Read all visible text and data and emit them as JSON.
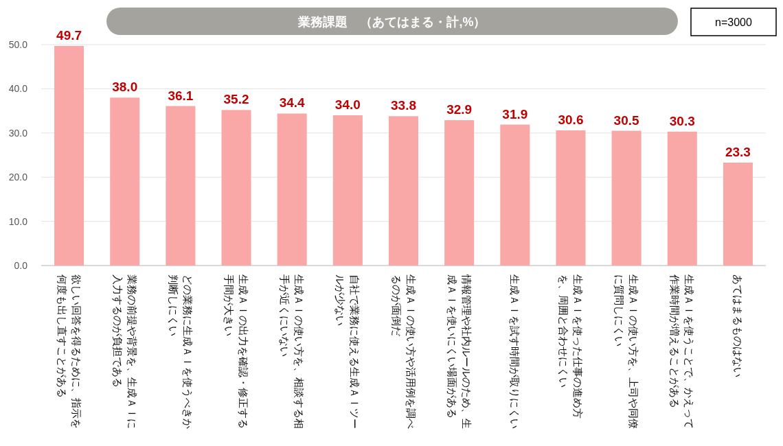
{
  "chart_data": {
    "type": "bar",
    "title": "業務課題　（あてはまる・計,%）",
    "annotations": [
      "n=3000"
    ],
    "categories": [
      "欲しい回答を得るために、指示を何度も出し直すことがある",
      "業務の前提や背景を、生成ＡＩに入力するのが負担である",
      "どの業務に生成ＡＩを使うべきか判断しにくい",
      "生成ＡＩの出力を確認・修正する手間が大きい",
      "生成ＡＩの使い方を、相談する相手が近くにいない",
      "自社で業務に使える生成ＡＩツールが少ない",
      "生成ＡＩの使い方や活用例を調べるのが面倒だ",
      "情報管理や社内ルールのため、生成ＡＩを使いにくい場面がある",
      "生成ＡＩを試す時間が取りにくい",
      "生成ＡＩを使った仕事の進め方を、周囲と合わせにくい",
      "生成ＡＩの使い方を、上司や同僚に質問しにくい",
      "生成ＡＩを使うことで、かえって作業時間が増えることがある",
      "あてはまるものはない"
    ],
    "values": [
      49.7,
      38.0,
      36.1,
      35.2,
      34.4,
      34.0,
      33.8,
      32.9,
      31.9,
      30.6,
      30.5,
      30.3,
      23.3
    ],
    "value_labels": [
      "49.7",
      "38.0",
      "36.1",
      "35.2",
      "34.4",
      "34.0",
      "33.8",
      "32.9",
      "31.9",
      "30.6",
      "30.5",
      "30.3",
      "23.3"
    ],
    "color": "#f9a7a7",
    "ylim": [
      0,
      50
    ],
    "yticks": [
      {
        "value": 0,
        "label": "0.0"
      },
      {
        "value": 10,
        "label": "10.0"
      },
      {
        "value": 20,
        "label": "20.0"
      },
      {
        "value": 30,
        "label": "30.0"
      },
      {
        "value": 40,
        "label": "40.0"
      },
      {
        "value": 50,
        "label": "50.0"
      }
    ],
    "grid": "y"
  }
}
